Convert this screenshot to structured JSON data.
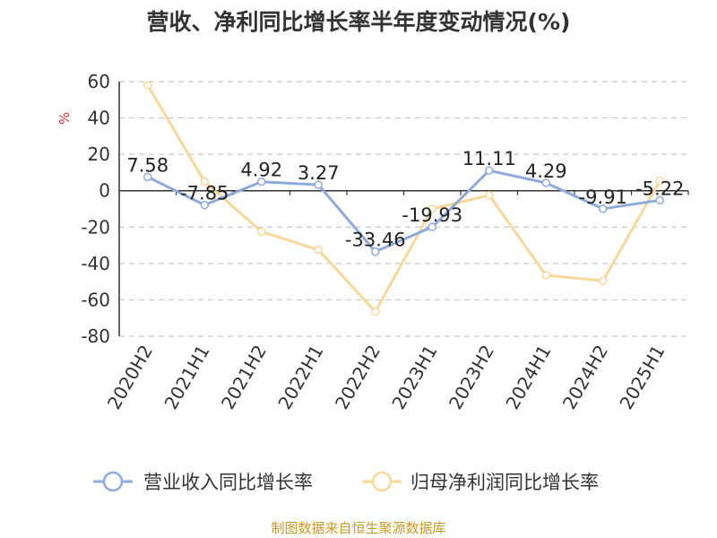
{
  "chart_data": {
    "type": "line",
    "title": "营收、净利同比增长率半年度变动情况(%)",
    "ylabel": "%",
    "categories": [
      "2020H2",
      "2021H1",
      "2021H2",
      "2022H1",
      "2022H2",
      "2023H1",
      "2023H2",
      "2024H1",
      "2024H2",
      "2025H1"
    ],
    "series": [
      {
        "name": "营业收入同比增长率",
        "color": "#8eaadb",
        "values": [
          7.58,
          -7.85,
          4.92,
          3.27,
          -33.46,
          -19.93,
          11.11,
          4.29,
          -9.91,
          -5.22
        ],
        "labels": [
          "7.58",
          "-7.85",
          "4.92",
          "3.27",
          "-33.46",
          "-19.93",
          "11.11",
          "4.29",
          "-9.91",
          "-5.22"
        ]
      },
      {
        "name": "归母净利润同比增长率",
        "color": "#f8d89a",
        "values": [
          58,
          5,
          -22.5,
          -32.5,
          -66.5,
          -10,
          -2.5,
          -46.5,
          -49.5,
          5.5
        ]
      }
    ],
    "yticks": [
      "60",
      "40",
      "20",
      "0",
      "-20",
      "-40",
      "-60",
      "-80"
    ],
    "ylim": [
      -80,
      60
    ],
    "grid": true,
    "legend": "bottom"
  },
  "source": "制图数据来自恒生聚源数据库"
}
